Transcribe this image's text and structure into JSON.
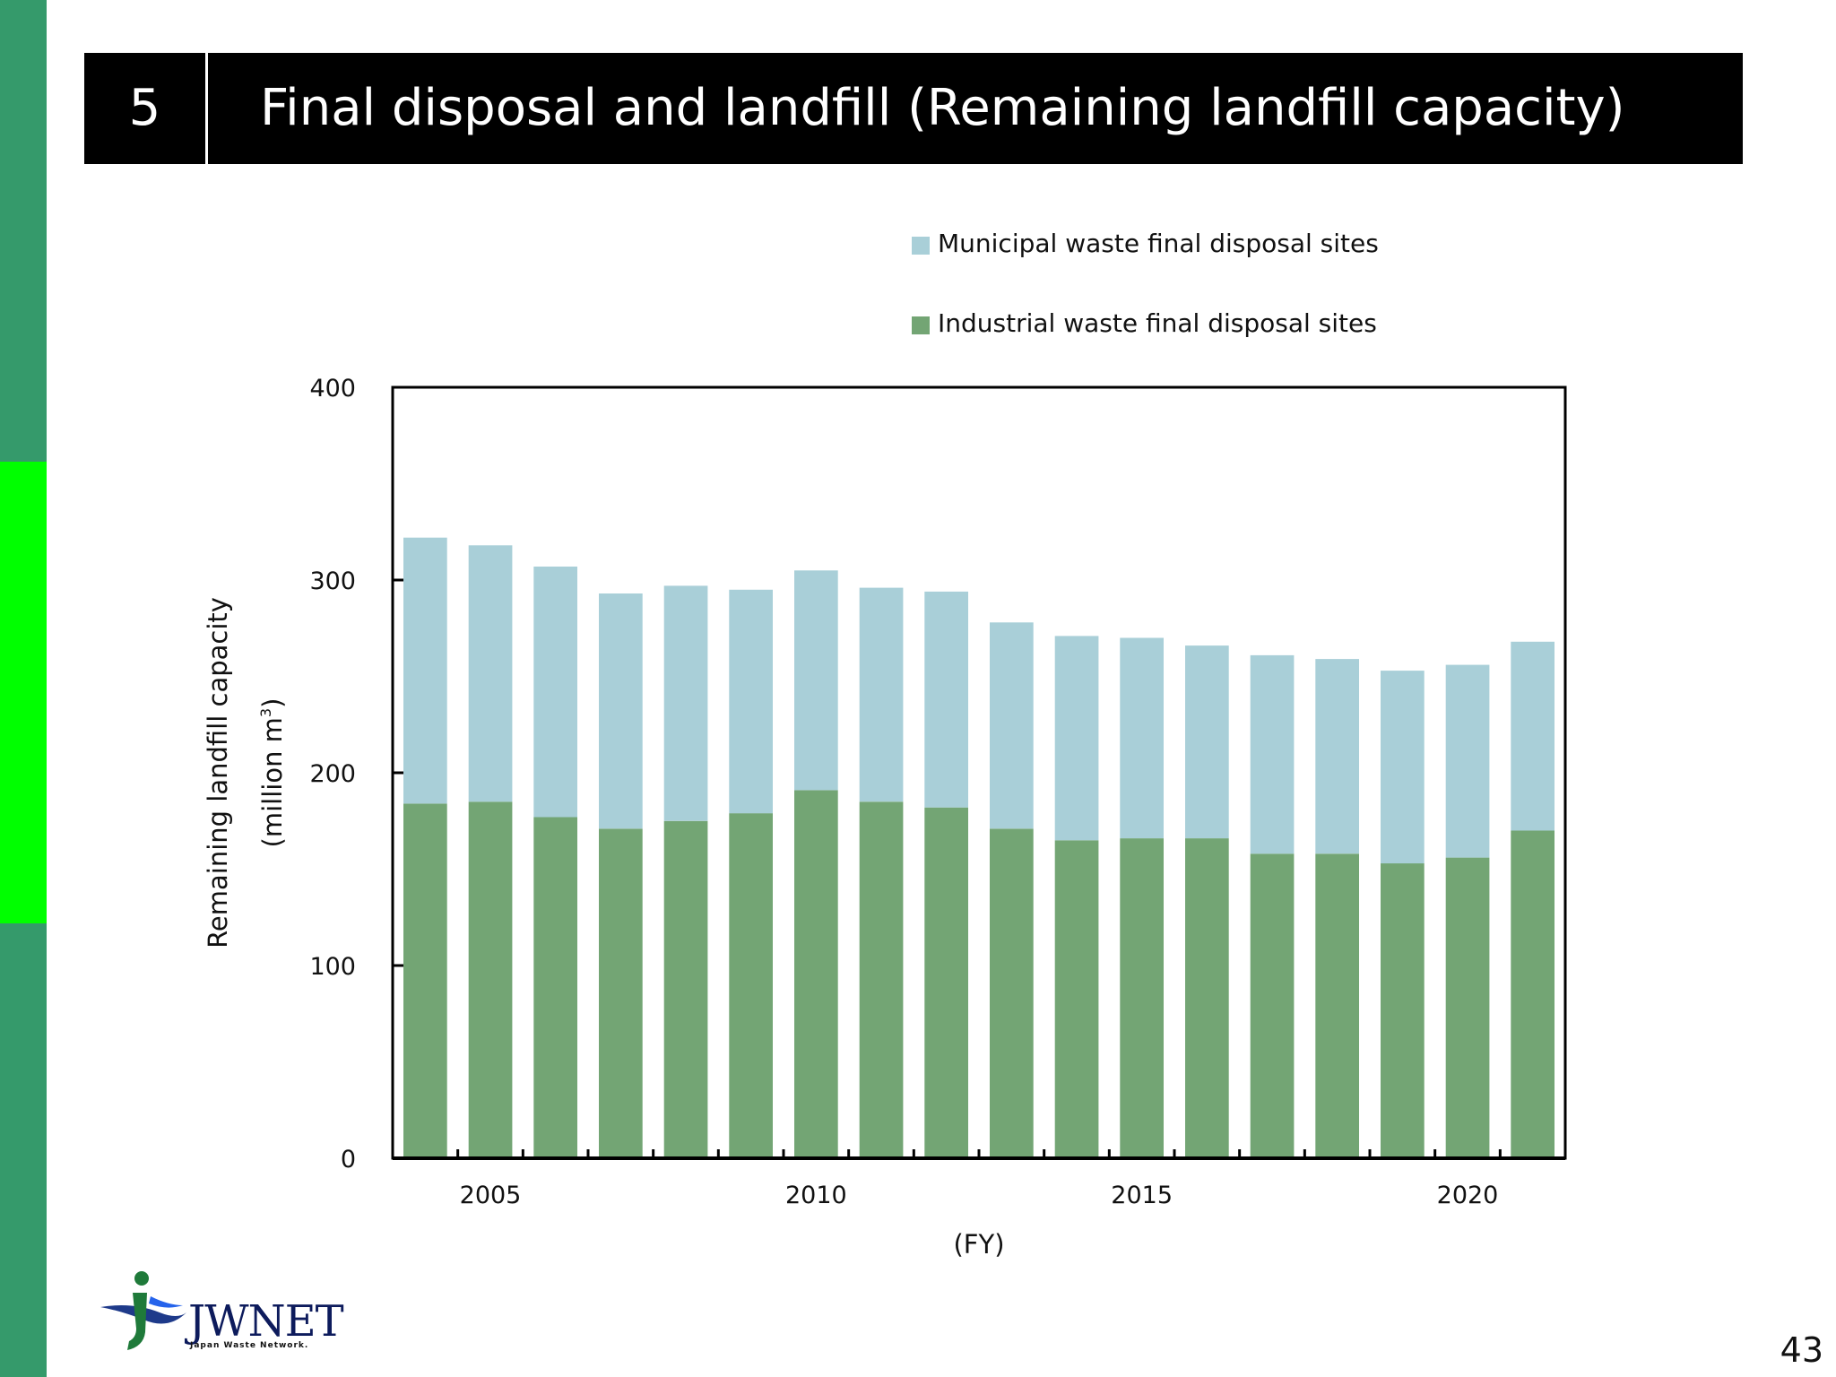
{
  "header": {
    "section_number": "5",
    "title": "Final disposal and landfill (Remaining landfill capacity)"
  },
  "page_number": "43",
  "logo": {
    "name": "JWNET",
    "subtitle": "Japan Waste Network."
  },
  "colors": {
    "sidebar_dark": "#359a6b",
    "sidebar_bright": "#00ff00",
    "municipal": "#a9cfd8",
    "industrial": "#73a574"
  },
  "chart_data": {
    "type": "bar",
    "stacked": true,
    "x": [
      2004,
      2005,
      2006,
      2007,
      2008,
      2009,
      2010,
      2011,
      2012,
      2013,
      2014,
      2015,
      2016,
      2017,
      2018,
      2019,
      2020,
      2021
    ],
    "x_tick_labels": [
      "2005",
      "2010",
      "2015",
      "2020"
    ],
    "x_tick_values": [
      2005,
      2010,
      2015,
      2020
    ],
    "series": [
      {
        "name": "Industrial waste final disposal sites",
        "color": "#73a574",
        "values": [
          184,
          185,
          177,
          171,
          175,
          179,
          191,
          185,
          182,
          171,
          165,
          166,
          166,
          158,
          158,
          153,
          156,
          170
        ]
      },
      {
        "name": "Municipal waste final disposal sites",
        "color": "#a9cfd8",
        "values": [
          138,
          133,
          130,
          122,
          122,
          116,
          114,
          111,
          112,
          107,
          106,
          104,
          100,
          103,
          101,
          100,
          100,
          98
        ]
      }
    ],
    "legend": [
      "Municipal waste final disposal sites",
      "Industrial waste final disposal sites"
    ],
    "legend_placement": "top-right",
    "ylabel": "Remaining landfill capacity",
    "ylabel_unit": "(million m",
    "ylabel_unit_sup": "3",
    "ylabel_unit_close": ")",
    "xlabel": "(FY)",
    "ylim": [
      0,
      400
    ],
    "y_ticks": [
      "0",
      "100",
      "200",
      "300",
      "400"
    ],
    "grid": false
  }
}
